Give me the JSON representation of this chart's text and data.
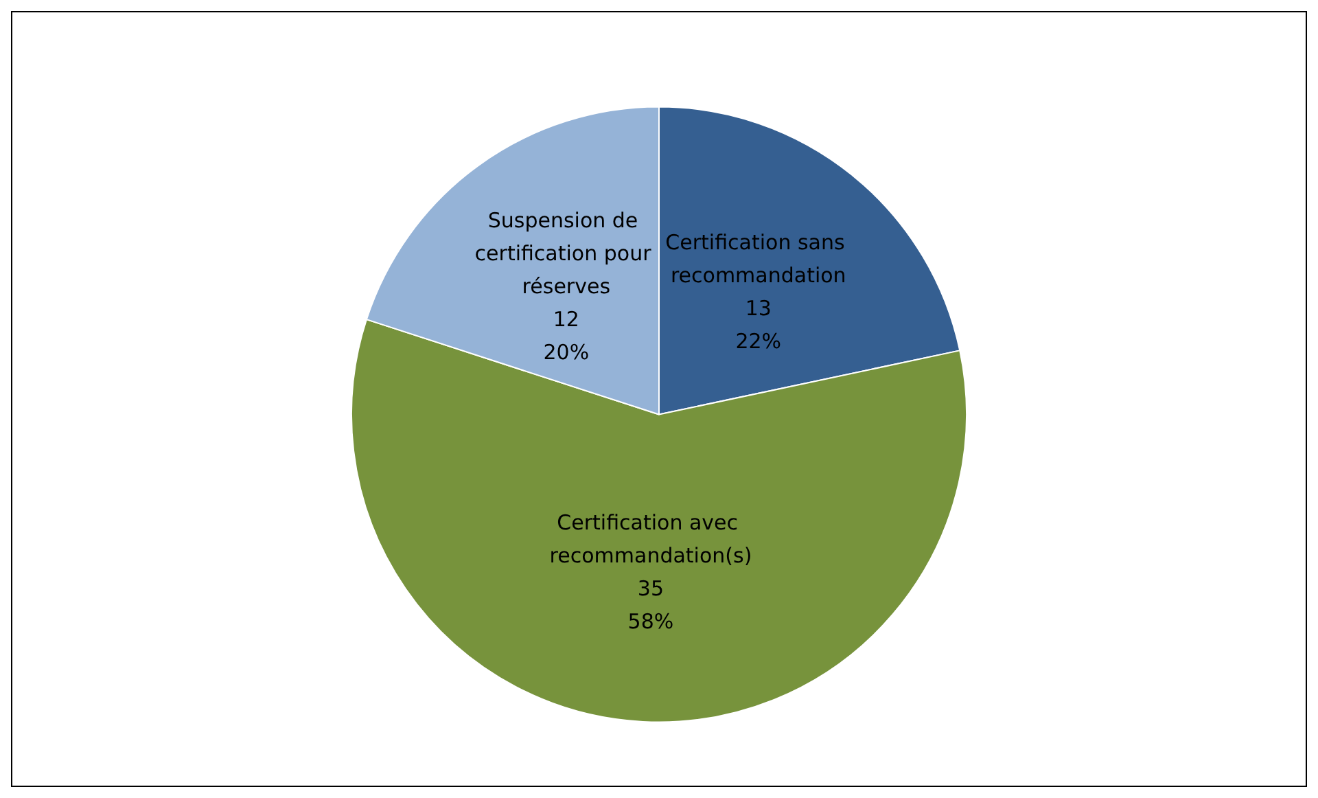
{
  "chart_data": {
    "type": "pie",
    "categories": [
      "Certification sans recommandation",
      "Certification avec recommandation(s)",
      "Suspension de certification pour réserves"
    ],
    "values": [
      13,
      35,
      12
    ],
    "colors": [
      "#355f91",
      "#77933c",
      "#95b3d7"
    ],
    "value_labels": [
      "13\n22%",
      "35\n58%",
      "12\n20%"
    ],
    "legend": false
  }
}
